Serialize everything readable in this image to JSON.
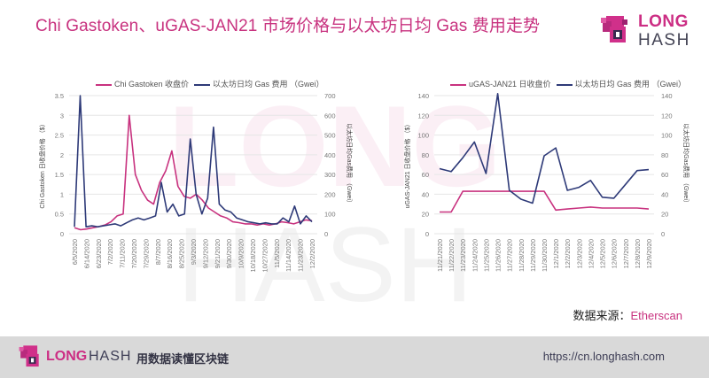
{
  "header": {
    "title": "Chi Gastoken、uGAS-JAN21 市场价格与以太坊日均 Gas 费用走势",
    "logo_top": "LONG",
    "logo_bottom": "HASH"
  },
  "colors": {
    "accent": "#c8327f",
    "series_price": "#c8327f",
    "series_gas": "#2e3a78",
    "footer_bg": "#d9d9d9",
    "grid": "#e6e6e6"
  },
  "source": {
    "label": "数据来源：",
    "name": "Etherscan"
  },
  "footer": {
    "logo_long": "LONG",
    "logo_hash": "HASH",
    "slogan": "用数据读懂区块链",
    "url": "https://cn.longhash.com"
  },
  "chart_data": [
    {
      "type": "line",
      "title": "",
      "legend": [
        "Chi Gastoken 收盘价",
        "以太坊日均 Gas 费用 （Gwei）"
      ],
      "xlabel": "",
      "ylabel": "Chi Gastoken 日收盘价格 （$）",
      "y2label": "以太坊日均Gas费用 （Gwei）",
      "ylim": [
        0,
        3.5
      ],
      "y2lim": [
        0,
        700
      ],
      "yticks": [
        "0",
        "0.5",
        "1",
        "1.5",
        "2",
        "2.5",
        "3",
        "3.5"
      ],
      "y2ticks": [
        "0",
        "100",
        "200",
        "300",
        "400",
        "500",
        "600",
        "700"
      ],
      "categories": [
        "6/5/2020",
        "6/14/2020",
        "6/23/2020",
        "7/2/2020",
        "7/11/2020",
        "7/20/2020",
        "7/29/2020",
        "8/7/2020",
        "8/16/2020",
        "8/25/2020",
        "9/3/2020",
        "9/12/2020",
        "9/21/2020",
        "9/30/2020",
        "10/9/2020",
        "10/18/2020",
        "10/27/2020",
        "11/5/2020",
        "11/14/2020",
        "11/23/2020",
        "12/2/2020"
      ],
      "grid": true,
      "legend_position": "top",
      "series": [
        {
          "name": "Chi Gastoken 收盘价",
          "axis": "left",
          "values": [
            0.15,
            0.1,
            0.12,
            0.15,
            0.18,
            0.22,
            0.3,
            0.45,
            0.5,
            3.0,
            1.5,
            1.1,
            0.85,
            0.75,
            1.3,
            1.6,
            2.1,
            1.2,
            0.95,
            0.9,
            1.0,
            0.85,
            0.65,
            0.55,
            0.45,
            0.4,
            0.3,
            0.28,
            0.25,
            0.25,
            0.22,
            0.25,
            0.22,
            0.25,
            0.3,
            0.28,
            0.25,
            0.3,
            0.35,
            0.33
          ]
        },
        {
          "name": "以太坊日均 Gas 费用 （Gwei）",
          "axis": "right",
          "values": [
            35,
            700,
            35,
            40,
            35,
            40,
            45,
            50,
            40,
            55,
            70,
            80,
            70,
            80,
            90,
            260,
            110,
            150,
            90,
            100,
            480,
            200,
            100,
            180,
            540,
            150,
            120,
            110,
            80,
            70,
            60,
            55,
            50,
            55,
            50,
            50,
            80,
            60,
            140,
            50,
            90,
            60
          ]
        }
      ]
    },
    {
      "type": "line",
      "title": "",
      "legend": [
        "uGAS-JAN21 日收盘价",
        "以太坊日均 Gas 费用 （Gwei）"
      ],
      "xlabel": "",
      "ylabel": "uGAS-JAN21 日收盘价格 （$）",
      "y2label": "以太坊日均Gas费用 （Gwei）",
      "ylim": [
        0,
        140
      ],
      "y2lim": [
        0,
        140
      ],
      "yticks": [
        "0",
        "20",
        "40",
        "60",
        "80",
        "100",
        "120",
        "140"
      ],
      "y2ticks": [
        "0",
        "20",
        "40",
        "60",
        "80",
        "100",
        "120",
        "140"
      ],
      "categories": [
        "11/21/2020",
        "11/22/2020",
        "11/23/2020",
        "11/24/2020",
        "11/25/2020",
        "11/26/2020",
        "11/27/2020",
        "11/28/2020",
        "11/29/2020",
        "11/30/2020",
        "12/1/2020",
        "12/2/2020",
        "12/3/2020",
        "12/4/2020",
        "12/5/2020",
        "12/6/2020",
        "12/7/2020",
        "12/8/2020",
        "12/9/2020"
      ],
      "grid": true,
      "legend_position": "top",
      "series": [
        {
          "name": "uGAS-JAN21 日收盘价",
          "axis": "left",
          "values": [
            22,
            22,
            43,
            43,
            43,
            43,
            43,
            43,
            43,
            43,
            24,
            25,
            26,
            27,
            26,
            26,
            26,
            26,
            25
          ]
        },
        {
          "name": "以太坊日均 Gas 费用 （Gwei）",
          "axis": "right",
          "values": [
            66,
            63,
            77,
            93,
            61,
            142,
            44,
            35,
            31,
            79,
            87,
            44,
            47,
            54,
            37,
            36,
            50,
            64,
            65
          ]
        }
      ]
    }
  ]
}
